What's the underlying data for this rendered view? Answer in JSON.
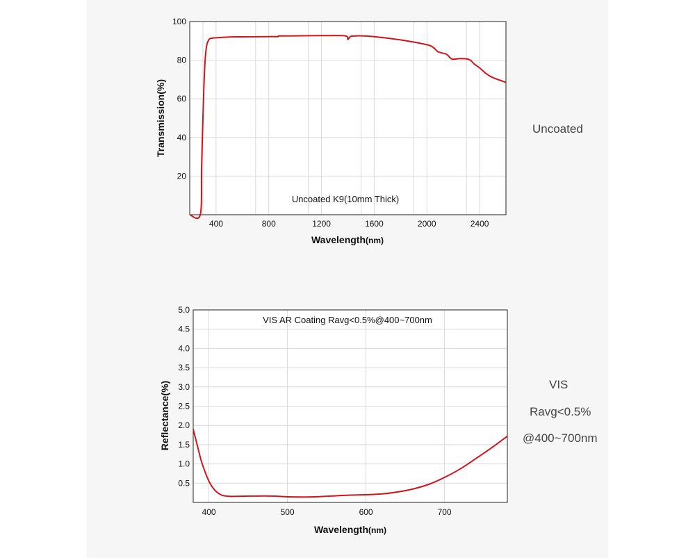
{
  "colors": {
    "curve": "#d0141b",
    "grid": "#d9d9d9",
    "frame": "#222222",
    "plot_bg": "#ffffff",
    "panel_bg": "#f6f6f6"
  },
  "side_labels": {
    "top": "Uncoated",
    "bottom_line1": "VIS",
    "bottom_line2": "Ravg<0.5%",
    "bottom_line3": "@400~700nm"
  },
  "chart_data": [
    {
      "type": "line",
      "title": "",
      "annotation": "Uncoated K9(10mm Thick)",
      "xlabel_main": "Wavelength",
      "xlabel_unit": "(nm)",
      "ylabel": "Transmission(%)",
      "xlim": [
        200,
        2600
      ],
      "ylim": [
        0,
        100
      ],
      "xticks": [
        400,
        800,
        1200,
        1600,
        2000,
        2400
      ],
      "xtick_labels": [
        "400",
        "800",
        "1200",
        "1600",
        "2000",
        "2400"
      ],
      "yticks": [
        20,
        40,
        60,
        80,
        100
      ],
      "ytick_labels": [
        "20",
        "40",
        "60",
        "80",
        "100"
      ],
      "grid": true,
      "series": [
        {
          "name": "Uncoated K9",
          "x": [
            200,
            280,
            290,
            300,
            310,
            320,
            330,
            340,
            350,
            360,
            380,
            400,
            500,
            600,
            800,
            870,
            880,
            1000,
            1200,
            1380,
            1400,
            1420,
            1450,
            1500,
            1600,
            1800,
            2000,
            2050,
            2080,
            2100,
            2150,
            2180,
            2200,
            2250,
            2300,
            2330,
            2360,
            2400,
            2450,
            2500,
            2600
          ],
          "y": [
            0,
            0,
            25,
            50,
            71,
            83,
            88,
            90,
            91,
            91.3,
            91.5,
            91.6,
            92,
            92.1,
            92.2,
            92.2,
            92.5,
            92.6,
            92.7,
            92.6,
            90.8,
            92.3,
            92.5,
            92.6,
            92.2,
            90.5,
            88,
            86.5,
            84.5,
            84,
            83,
            81,
            80.5,
            80.8,
            80.7,
            80,
            78,
            76,
            73,
            71,
            68.5
          ]
        }
      ]
    },
    {
      "type": "line",
      "title": "",
      "annotation": "VIS AR Coating Ravg<0.5%@400~700nm",
      "xlabel_main": "Wavelength",
      "xlabel_unit": "(nm)",
      "ylabel": "Reflectance(%)",
      "xlim": [
        380,
        780
      ],
      "ylim": [
        0,
        5
      ],
      "xticks": [
        400,
        500,
        600,
        700
      ],
      "xtick_labels": [
        "400",
        "500",
        "600",
        "700"
      ],
      "yticks": [
        0.5,
        1.0,
        1.5,
        2.0,
        2.5,
        3.0,
        3.5,
        4.0,
        4.5,
        5.0
      ],
      "ytick_labels": [
        "0.5",
        "1.0",
        "1.5",
        "2.0",
        "2.5",
        "3.0",
        "3.5",
        "4.0",
        "4.5",
        "5.0"
      ],
      "grid": true,
      "series": [
        {
          "name": "VIS AR Coating",
          "x": [
            380,
            385,
            390,
            395,
            400,
            405,
            410,
            415,
            420,
            430,
            440,
            460,
            480,
            500,
            520,
            540,
            560,
            580,
            600,
            620,
            640,
            660,
            680,
            700,
            720,
            740,
            760,
            780
          ],
          "y": [
            1.9,
            1.5,
            1.1,
            0.8,
            0.55,
            0.38,
            0.27,
            0.2,
            0.17,
            0.155,
            0.16,
            0.165,
            0.165,
            0.145,
            0.14,
            0.15,
            0.17,
            0.19,
            0.2,
            0.22,
            0.27,
            0.35,
            0.47,
            0.65,
            0.87,
            1.14,
            1.42,
            1.72
          ]
        }
      ]
    }
  ]
}
